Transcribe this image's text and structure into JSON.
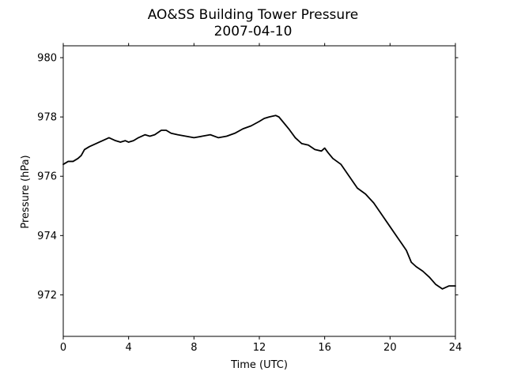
{
  "chart_data": {
    "type": "line",
    "title": "AO&SS Building Tower Pressure",
    "subtitle": "2007-04-10",
    "xlabel": "Time (UTC)",
    "ylabel": "Pressure (hPa)",
    "xlim": [
      0,
      24
    ],
    "ylim": [
      970.6,
      980.4
    ],
    "x_ticks": [
      0,
      4,
      8,
      12,
      16,
      20,
      24
    ],
    "y_ticks": [
      972,
      974,
      976,
      978,
      980
    ],
    "grid": false,
    "legend": "none",
    "series": [
      {
        "color": "#000000",
        "x": [
          0,
          0.3,
          0.6,
          0.9,
          1.1,
          1.3,
          1.6,
          2.0,
          2.4,
          2.8,
          3.0,
          3.2,
          3.5,
          3.8,
          4.0,
          4.3,
          4.6,
          5.0,
          5.3,
          5.6,
          6.0,
          6.3,
          6.6,
          7.0,
          7.5,
          8.0,
          8.5,
          9.0,
          9.5,
          10.0,
          10.5,
          11.0,
          11.5,
          12.0,
          12.3,
          12.6,
          13.0,
          13.2,
          13.5,
          13.8,
          14.2,
          14.6,
          15.0,
          15.4,
          15.8,
          16.0,
          16.2,
          16.5,
          17.0,
          17.5,
          18.0,
          18.5,
          19.0,
          19.5,
          20.0,
          20.5,
          21.0,
          21.3,
          21.6,
          22.0,
          22.4,
          22.8,
          23.2,
          23.6,
          24.0
        ],
        "y": [
          976.4,
          976.5,
          976.5,
          976.6,
          976.7,
          976.9,
          977.0,
          977.1,
          977.2,
          977.3,
          977.25,
          977.2,
          977.15,
          977.2,
          977.15,
          977.2,
          977.3,
          977.4,
          977.35,
          977.4,
          977.55,
          977.55,
          977.45,
          977.4,
          977.35,
          977.3,
          977.35,
          977.4,
          977.3,
          977.35,
          977.45,
          977.6,
          977.7,
          977.85,
          977.95,
          978.0,
          978.05,
          978.0,
          977.8,
          977.6,
          977.3,
          977.1,
          977.05,
          976.9,
          976.85,
          976.95,
          976.8,
          976.6,
          976.4,
          976.0,
          975.6,
          975.4,
          975.1,
          974.7,
          974.3,
          973.9,
          973.5,
          973.1,
          972.95,
          972.8,
          972.6,
          972.35,
          972.2,
          972.3,
          972.3
        ]
      }
    ]
  }
}
